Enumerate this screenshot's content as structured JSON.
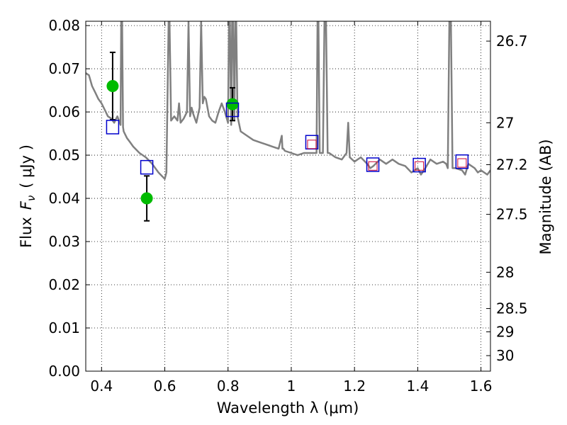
{
  "chart_data": {
    "type": "scatter",
    "xlabel": "Wavelength  λ (μm)",
    "ylabel": "Flux  F_ν  ( μJy )",
    "ylabel_parts": [
      "Flux",
      "F",
      "ν",
      "( μJy )"
    ],
    "y2label": "Magnitude (AB)",
    "xlim": [
      0.35,
      1.63
    ],
    "ylim": [
      0.0,
      0.081
    ],
    "x_ticks": [
      0.4,
      0.6,
      0.8,
      1.0,
      1.2,
      1.4,
      1.6
    ],
    "x_tick_labels": [
      "0.4",
      "0.6",
      "0.8",
      "1",
      "1.2",
      "1.4",
      "1.6"
    ],
    "y_ticks": [
      0.0,
      0.01,
      0.02,
      0.03,
      0.04,
      0.05,
      0.06,
      0.07,
      0.08
    ],
    "y_tick_labels": [
      "0.00",
      "0.01",
      "0.02",
      "0.03",
      "0.04",
      "0.05",
      "0.06",
      "0.07",
      "0.08"
    ],
    "y2_ticks": [
      {
        "label": "26.7",
        "flux": 0.0764
      },
      {
        "label": "27",
        "flux": 0.0575
      },
      {
        "label": "27.2",
        "flux": 0.0478
      },
      {
        "label": "27.5",
        "flux": 0.0363
      },
      {
        "label": "28",
        "flux": 0.0229
      },
      {
        "label": "28.5",
        "flux": 0.0145
      },
      {
        "label": "29",
        "flux": 0.0091
      },
      {
        "label": "30",
        "flux": 0.0036
      }
    ],
    "grid": true,
    "colors": {
      "model": "#808080",
      "observed": "#00bb00",
      "synthetic": "#0000cc",
      "predicted": "#cc0033",
      "errorbar": "#000000"
    },
    "series": [
      {
        "type": "line",
        "x": [
          0.35,
          0.36,
          0.37,
          0.38,
          0.39,
          0.4,
          0.41,
          0.42,
          0.43,
          0.44,
          0.45,
          0.46,
          0.462,
          0.465,
          0.468,
          0.47,
          0.48,
          0.49,
          0.5,
          0.52,
          0.54,
          0.56,
          0.58,
          0.6,
          0.605,
          0.612,
          0.615,
          0.62,
          0.63,
          0.64,
          0.645,
          0.65,
          0.66,
          0.67,
          0.675,
          0.68,
          0.685,
          0.69,
          0.7,
          0.71,
          0.715,
          0.72,
          0.725,
          0.73,
          0.74,
          0.75,
          0.76,
          0.77,
          0.78,
          0.79,
          0.8,
          0.803,
          0.806,
          0.81,
          0.813,
          0.816,
          0.82,
          0.823,
          0.826,
          0.83,
          0.84,
          0.86,
          0.88,
          0.9,
          0.92,
          0.94,
          0.96,
          0.97,
          0.972,
          0.975,
          0.98,
          1.0,
          1.02,
          1.04,
          1.06,
          1.07,
          1.08,
          1.083,
          1.086,
          1.09,
          1.1,
          1.105,
          1.11,
          1.115,
          1.12,
          1.14,
          1.16,
          1.175,
          1.18,
          1.185,
          1.2,
          1.22,
          1.24,
          1.25,
          1.26,
          1.28,
          1.3,
          1.32,
          1.34,
          1.36,
          1.38,
          1.4,
          1.41,
          1.42,
          1.44,
          1.46,
          1.48,
          1.49,
          1.495,
          1.5,
          1.505,
          1.51,
          1.52,
          1.54,
          1.55,
          1.56,
          1.58,
          1.59,
          1.6,
          1.62,
          1.63
        ],
        "y": [
          0.069,
          0.0685,
          0.066,
          0.0645,
          0.063,
          0.062,
          0.0605,
          0.059,
          0.0585,
          0.0575,
          0.059,
          0.057,
          0.081,
          0.081,
          0.0565,
          0.0555,
          0.054,
          0.053,
          0.052,
          0.0505,
          0.0495,
          0.048,
          0.046,
          0.0445,
          0.046,
          0.081,
          0.081,
          0.058,
          0.059,
          0.058,
          0.062,
          0.0575,
          0.0585,
          0.06,
          0.081,
          0.059,
          0.061,
          0.0595,
          0.0575,
          0.061,
          0.081,
          0.062,
          0.0635,
          0.063,
          0.059,
          0.058,
          0.0575,
          0.06,
          0.062,
          0.06,
          0.0575,
          0.081,
          0.081,
          0.057,
          0.081,
          0.081,
          0.058,
          0.081,
          0.081,
          0.059,
          0.0555,
          0.0545,
          0.0535,
          0.053,
          0.0525,
          0.052,
          0.0515,
          0.0545,
          0.0515,
          0.0515,
          0.051,
          0.0505,
          0.05,
          0.0505,
          0.0505,
          0.0505,
          0.0505,
          0.081,
          0.081,
          0.0505,
          0.0505,
          0.081,
          0.081,
          0.0505,
          0.0505,
          0.0495,
          0.049,
          0.0505,
          0.0575,
          0.0495,
          0.0485,
          0.0495,
          0.048,
          0.047,
          0.0475,
          0.049,
          0.048,
          0.049,
          0.048,
          0.0475,
          0.046,
          0.047,
          0.0455,
          0.0465,
          0.049,
          0.048,
          0.0485,
          0.048,
          0.047,
          0.081,
          0.081,
          0.047,
          0.047,
          0.0465,
          0.0455,
          0.048,
          0.047,
          0.046,
          0.0465,
          0.0455,
          0.0465
        ]
      },
      {
        "type": "points",
        "x": [
          0.435,
          0.543,
          0.814
        ],
        "y": [
          0.066,
          0.04,
          0.0618
        ],
        "yerr": [
          0.0078,
          0.0052,
          0.0038
        ]
      },
      {
        "type": "open-squares",
        "x": [
          0.435,
          0.543,
          0.814,
          1.065,
          1.258,
          1.405,
          1.54
        ],
        "y": [
          0.0565,
          0.0472,
          0.0605,
          0.053,
          0.0478,
          0.0477,
          0.0485
        ]
      },
      {
        "type": "open-squares",
        "x": [
          1.065,
          1.258,
          1.405,
          1.54
        ],
        "y": [
          0.0525,
          0.0475,
          0.0475,
          0.0482
        ]
      }
    ]
  }
}
